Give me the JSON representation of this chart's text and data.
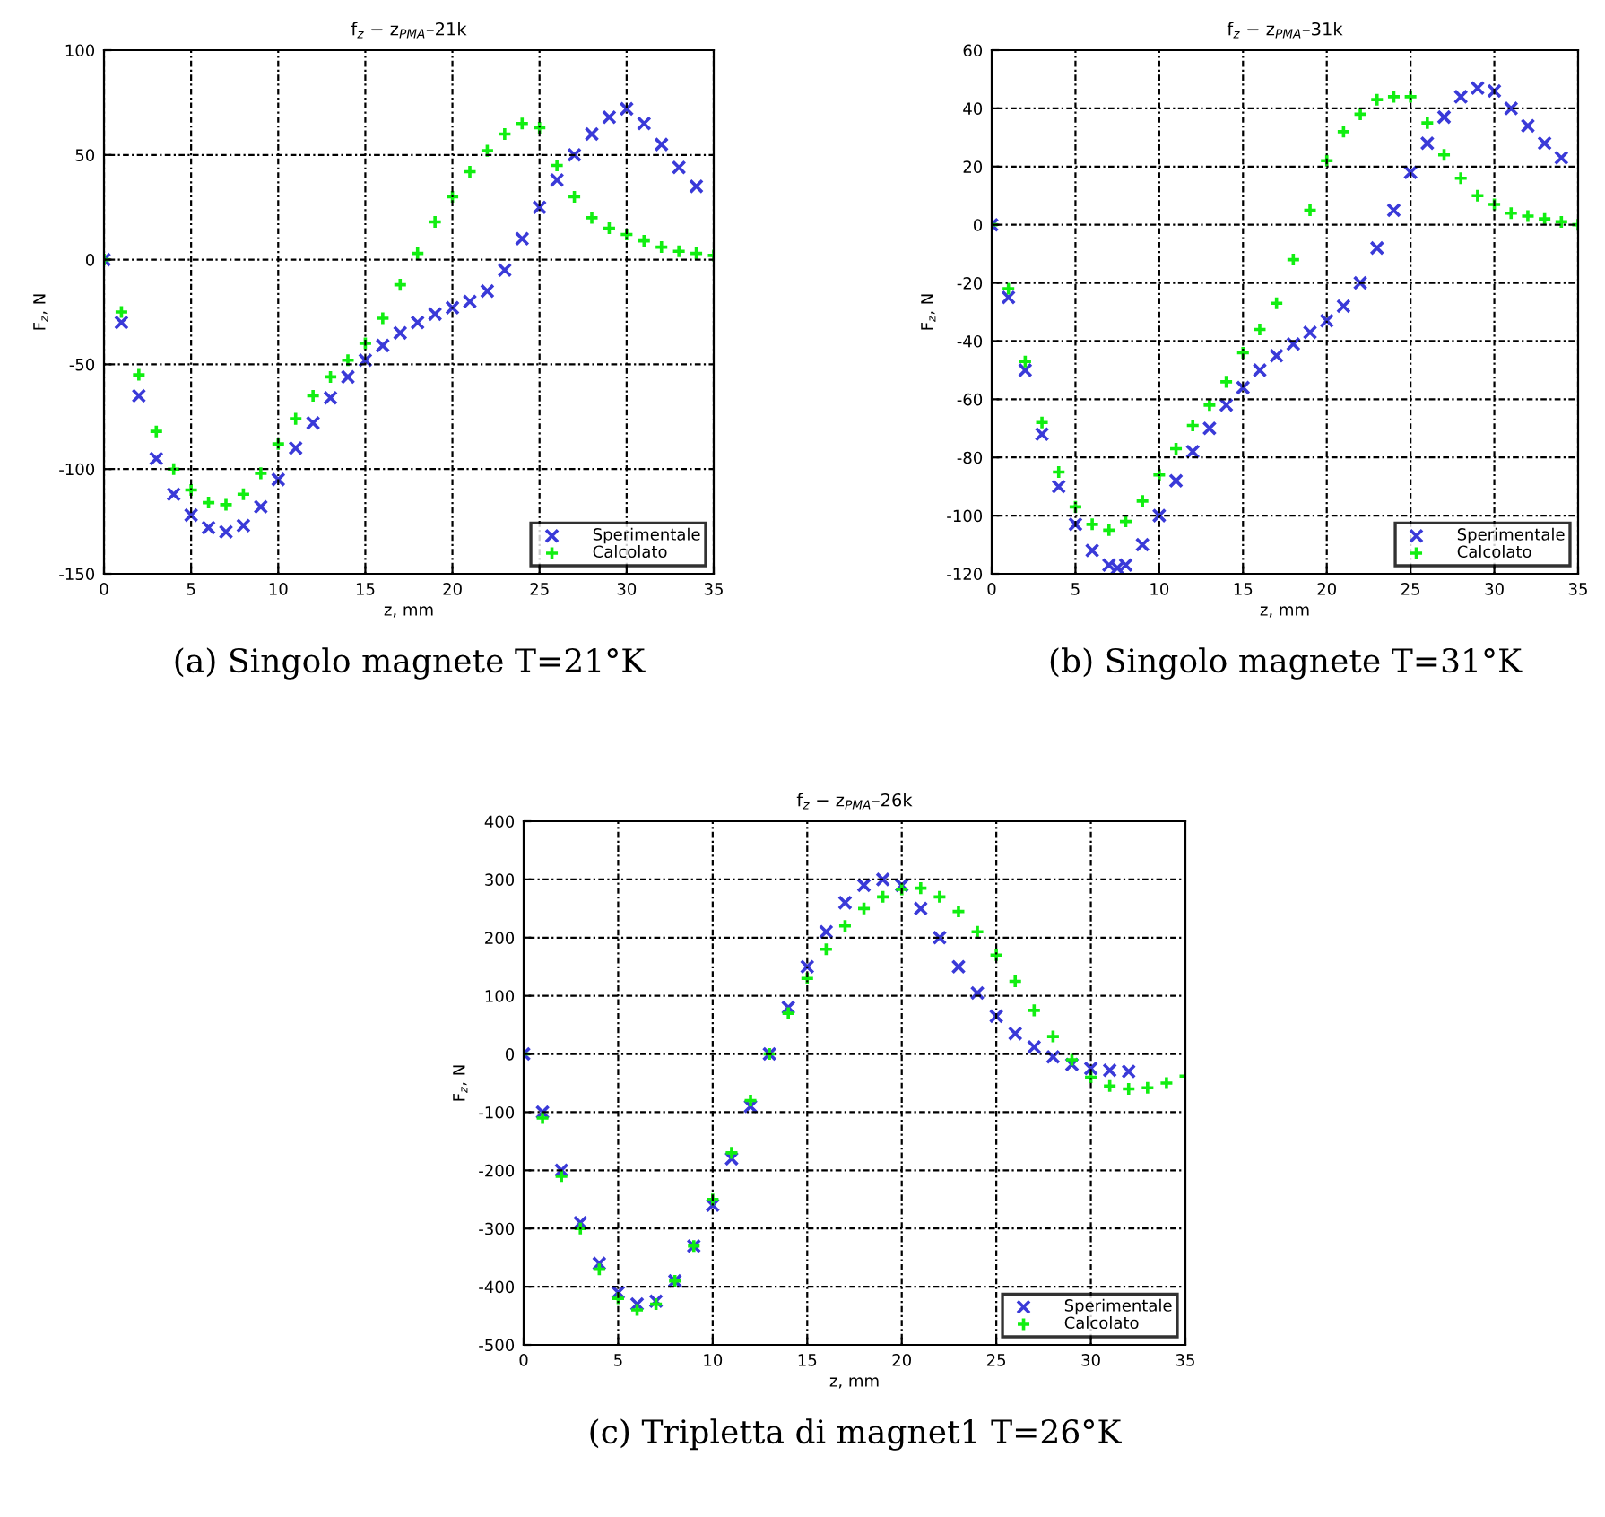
{
  "chart_data": [
    {
      "type": "scatter",
      "title": "f$_{z}$ − z$_{PMA}$–21k",
      "xlabel": "z, mm",
      "ylabel": "F$_{z}$, N",
      "xlim": [
        0,
        35
      ],
      "xticks": [
        0,
        5,
        10,
        15,
        20,
        25,
        30,
        35
      ],
      "ylim": [
        -150,
        100
      ],
      "yticks": [
        -150,
        -100,
        -50,
        0,
        50,
        100
      ],
      "grid": true,
      "legend": "bottom right",
      "annotations": [
        "(a) Singolo magnete T=21°K"
      ],
      "series": [
        {
          "name": "Sperimentale",
          "color": "#3a3ad8",
          "marker": "cross",
          "x": [
            0,
            1,
            2,
            3,
            4,
            5,
            6,
            7,
            8,
            9,
            10,
            11,
            12,
            13,
            14,
            15,
            16,
            17,
            18,
            19,
            20,
            21,
            22,
            23,
            24,
            25,
            26,
            27,
            28,
            29,
            30,
            31,
            32,
            33,
            34
          ],
          "values": [
            0,
            -30,
            -65,
            -95,
            -112,
            -122,
            -128,
            -130,
            -127,
            -118,
            -105,
            -90,
            -78,
            -66,
            -56,
            -48,
            -41,
            -35,
            -30,
            -26,
            -23,
            -20,
            -15,
            -5,
            10,
            25,
            38,
            50,
            60,
            68,
            72,
            65,
            55,
            44,
            35
          ]
        },
        {
          "name": "Calcolato",
          "color": "#11ee11",
          "marker": "plus",
          "x": [
            0,
            1,
            2,
            3,
            4,
            5,
            6,
            7,
            8,
            9,
            10,
            11,
            12,
            13,
            14,
            15,
            16,
            17,
            18,
            19,
            20,
            21,
            22,
            23,
            24,
            25,
            26,
            27,
            28,
            29,
            30,
            31,
            32,
            33,
            34,
            35
          ],
          "values": [
            0,
            -25,
            -55,
            -82,
            -100,
            -110,
            -116,
            -117,
            -112,
            -102,
            -88,
            -76,
            -65,
            -56,
            -48,
            -40,
            -28,
            -12,
            3,
            18,
            30,
            42,
            52,
            60,
            65,
            63,
            45,
            30,
            20,
            15,
            12,
            9,
            6,
            4,
            3,
            2
          ]
        }
      ]
    },
    {
      "type": "scatter",
      "title": "f$_{z}$ − z$_{PMA}$–31k",
      "xlabel": "z, mm",
      "ylabel": "F$_{z}$, N",
      "xlim": [
        0,
        35
      ],
      "xticks": [
        0,
        5,
        10,
        15,
        20,
        25,
        30,
        35
      ],
      "ylim": [
        -120,
        60
      ],
      "yticks": [
        -120,
        -100,
        -80,
        -60,
        -40,
        -20,
        0,
        20,
        40,
        60
      ],
      "grid": true,
      "legend": "bottom right",
      "annotations": [
        "(b) Singolo magnete T=31°K"
      ],
      "series": [
        {
          "name": "Sperimentale",
          "color": "#3a3ad8",
          "marker": "cross",
          "x": [
            0,
            1,
            2,
            3,
            4,
            5,
            6,
            7,
            7.5,
            8,
            9,
            10,
            11,
            12,
            13,
            14,
            15,
            16,
            17,
            18,
            19,
            20,
            21,
            22,
            23,
            24,
            25,
            26,
            27,
            28,
            29,
            30,
            31,
            32,
            33,
            34
          ],
          "values": [
            0,
            -25,
            -50,
            -72,
            -90,
            -103,
            -112,
            -117,
            -118,
            -117,
            -110,
            -100,
            -88,
            -78,
            -70,
            -62,
            -56,
            -50,
            -45,
            -41,
            -37,
            -33,
            -28,
            -20,
            -8,
            5,
            18,
            28,
            37,
            44,
            47,
            46,
            40,
            34,
            28,
            23
          ]
        },
        {
          "name": "Calcolato",
          "color": "#11ee11",
          "marker": "plus",
          "x": [
            0,
            1,
            2,
            3,
            4,
            5,
            6,
            7,
            8,
            9,
            10,
            11,
            12,
            13,
            14,
            15,
            16,
            17,
            18,
            19,
            20,
            21,
            22,
            23,
            24,
            25,
            26,
            27,
            28,
            29,
            30,
            31,
            32,
            33,
            34,
            35
          ],
          "values": [
            0,
            -22,
            -47,
            -68,
            -85,
            -97,
            -103,
            -105,
            -102,
            -95,
            -86,
            -77,
            -69,
            -62,
            -54,
            -44,
            -36,
            -27,
            -12,
            5,
            22,
            32,
            38,
            43,
            44,
            44,
            35,
            24,
            16,
            10,
            7,
            4,
            3,
            2,
            1,
            0
          ]
        }
      ]
    },
    {
      "type": "scatter",
      "title": "f$_{z}$ − z$_{PMA}$–26k",
      "xlabel": "z, mm",
      "ylabel": "F$_{z}$, N",
      "xlim": [
        0,
        35
      ],
      "xticks": [
        0,
        5,
        10,
        15,
        20,
        25,
        30,
        35
      ],
      "ylim": [
        -500,
        400
      ],
      "yticks": [
        -500,
        -400,
        -300,
        -200,
        -100,
        0,
        100,
        200,
        300,
        400
      ],
      "grid": true,
      "legend": "bottom right",
      "annotations": [
        "(c) Tripletta di magnet1 T=26°K"
      ],
      "series": [
        {
          "name": "Sperimentale",
          "color": "#3a3ad8",
          "marker": "cross",
          "x": [
            0,
            1,
            2,
            3,
            4,
            5,
            6,
            7,
            8,
            9,
            10,
            11,
            12,
            13,
            14,
            15,
            16,
            17,
            18,
            19,
            20,
            21,
            22,
            23,
            24,
            25,
            26,
            27,
            28,
            29,
            30,
            31,
            32
          ],
          "values": [
            0,
            -100,
            -200,
            -290,
            -360,
            -410,
            -430,
            -425,
            -390,
            -330,
            -260,
            -180,
            -90,
            0,
            80,
            150,
            210,
            260,
            290,
            300,
            290,
            250,
            200,
            150,
            105,
            65,
            35,
            12,
            -5,
            -18,
            -25,
            -28,
            -30
          ]
        },
        {
          "name": "Calcolato",
          "color": "#11ee11",
          "marker": "plus",
          "x": [
            0,
            1,
            2,
            3,
            4,
            5,
            6,
            7,
            8,
            9,
            10,
            11,
            12,
            13,
            14,
            15,
            16,
            17,
            18,
            19,
            20,
            21,
            22,
            23,
            24,
            25,
            26,
            27,
            28,
            29,
            30,
            31,
            32,
            33,
            34,
            35
          ],
          "values": [
            0,
            -110,
            -210,
            -300,
            -370,
            -420,
            -440,
            -430,
            -390,
            -330,
            -250,
            -170,
            -80,
            0,
            70,
            130,
            180,
            220,
            250,
            270,
            283,
            285,
            270,
            245,
            210,
            170,
            125,
            75,
            30,
            -10,
            -40,
            -55,
            -60,
            -58,
            -50,
            -38
          ]
        }
      ]
    }
  ]
}
